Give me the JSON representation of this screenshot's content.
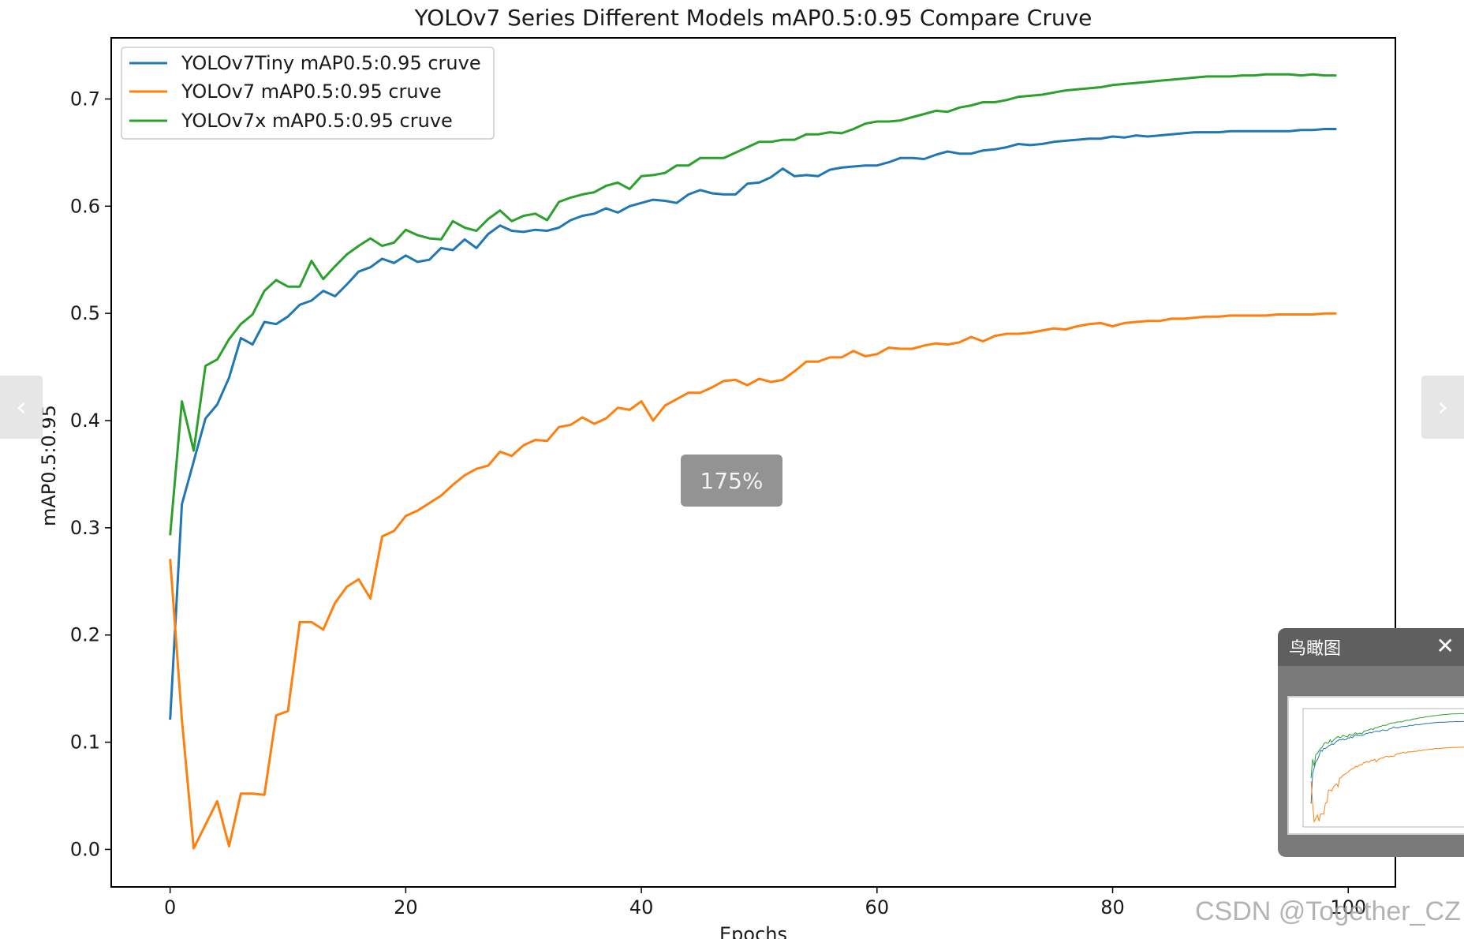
{
  "chart_data": {
    "type": "line",
    "title": "YOLOv7 Series Different Models mAP0.5:0.95 Compare Cruve",
    "xlabel": "Epochs",
    "ylabel": "mAP0.5:0.95",
    "xlim": [
      -5,
      104
    ],
    "ylim": [
      -0.035,
      0.757
    ],
    "x_ticks": [
      0,
      20,
      40,
      60,
      80,
      100
    ],
    "x_tick_labels": [
      "0",
      "20",
      "40",
      "60",
      "80",
      "100"
    ],
    "y_ticks": [
      0.0,
      0.1,
      0.2,
      0.3,
      0.4,
      0.5,
      0.6,
      0.7
    ],
    "y_tick_labels": [
      "0.0",
      "0.1",
      "0.2",
      "0.3",
      "0.4",
      "0.5",
      "0.6",
      "0.7"
    ],
    "grid": false,
    "legend_position": "top-left",
    "x": [
      0,
      1,
      2,
      3,
      4,
      5,
      6,
      7,
      8,
      9,
      10,
      11,
      12,
      13,
      14,
      15,
      16,
      17,
      18,
      19,
      20,
      21,
      22,
      23,
      24,
      25,
      26,
      27,
      28,
      29,
      30,
      31,
      32,
      33,
      34,
      35,
      36,
      37,
      38,
      39,
      40,
      41,
      42,
      43,
      44,
      45,
      46,
      47,
      48,
      49,
      50,
      51,
      52,
      53,
      54,
      55,
      56,
      57,
      58,
      59,
      60,
      61,
      62,
      63,
      64,
      65,
      66,
      67,
      68,
      69,
      70,
      71,
      72,
      73,
      74,
      75,
      76,
      77,
      78,
      79,
      80,
      81,
      82,
      83,
      84,
      85,
      86,
      87,
      88,
      89,
      90,
      91,
      92,
      93,
      94,
      95,
      96,
      97,
      98,
      99
    ],
    "series": [
      {
        "name": "YOLOv7Tiny mAP0.5:0.95 cruve",
        "color": "#1f77b4",
        "values": [
          0.121,
          0.322,
          0.362,
          0.402,
          0.415,
          0.44,
          0.477,
          0.471,
          0.492,
          0.49,
          0.497,
          0.508,
          0.512,
          0.521,
          0.516,
          0.527,
          0.539,
          0.543,
          0.551,
          0.547,
          0.554,
          0.548,
          0.55,
          0.561,
          0.559,
          0.569,
          0.561,
          0.574,
          0.582,
          0.577,
          0.576,
          0.578,
          0.577,
          0.58,
          0.587,
          0.591,
          0.593,
          0.598,
          0.594,
          0.6,
          0.603,
          0.606,
          0.605,
          0.603,
          0.611,
          0.615,
          0.612,
          0.611,
          0.611,
          0.621,
          0.622,
          0.627,
          0.635,
          0.628,
          0.629,
          0.628,
          0.634,
          0.636,
          0.637,
          0.638,
          0.638,
          0.641,
          0.645,
          0.645,
          0.644,
          0.648,
          0.651,
          0.649,
          0.649,
          0.652,
          0.653,
          0.655,
          0.658,
          0.657,
          0.658,
          0.66,
          0.661,
          0.662,
          0.663,
          0.663,
          0.665,
          0.664,
          0.666,
          0.665,
          0.666,
          0.667,
          0.668,
          0.669,
          0.669,
          0.669,
          0.67,
          0.67,
          0.67,
          0.67,
          0.67,
          0.67,
          0.671,
          0.671,
          0.672,
          0.672
        ]
      },
      {
        "name": "YOLOv7 mAP0.5:0.95 cruve",
        "color": "#ff7f0e",
        "values": [
          0.271,
          0.121,
          0.001,
          0.023,
          0.045,
          0.003,
          0.052,
          0.052,
          0.051,
          0.125,
          0.129,
          0.212,
          0.212,
          0.205,
          0.23,
          0.245,
          0.252,
          0.234,
          0.292,
          0.297,
          0.311,
          0.316,
          0.323,
          0.33,
          0.34,
          0.349,
          0.355,
          0.358,
          0.371,
          0.367,
          0.377,
          0.382,
          0.381,
          0.394,
          0.396,
          0.403,
          0.397,
          0.402,
          0.412,
          0.41,
          0.418,
          0.4,
          0.414,
          0.42,
          0.426,
          0.426,
          0.431,
          0.437,
          0.438,
          0.433,
          0.439,
          0.436,
          0.438,
          0.446,
          0.455,
          0.455,
          0.459,
          0.459,
          0.465,
          0.46,
          0.462,
          0.468,
          0.467,
          0.467,
          0.47,
          0.472,
          0.471,
          0.473,
          0.478,
          0.474,
          0.479,
          0.481,
          0.481,
          0.482,
          0.484,
          0.486,
          0.485,
          0.488,
          0.49,
          0.491,
          0.488,
          0.491,
          0.492,
          0.493,
          0.493,
          0.495,
          0.495,
          0.496,
          0.497,
          0.497,
          0.498,
          0.498,
          0.498,
          0.498,
          0.499,
          0.499,
          0.499,
          0.499,
          0.5,
          0.5
        ]
      },
      {
        "name": "YOLOv7x mAP0.5:0.95 cruve",
        "color": "#2ca02c",
        "values": [
          0.293,
          0.418,
          0.372,
          0.451,
          0.457,
          0.476,
          0.49,
          0.499,
          0.521,
          0.531,
          0.525,
          0.525,
          0.549,
          0.532,
          0.544,
          0.555,
          0.563,
          0.57,
          0.563,
          0.566,
          0.578,
          0.573,
          0.57,
          0.569,
          0.586,
          0.58,
          0.577,
          0.588,
          0.596,
          0.586,
          0.591,
          0.593,
          0.587,
          0.604,
          0.608,
          0.611,
          0.613,
          0.619,
          0.622,
          0.616,
          0.628,
          0.629,
          0.631,
          0.638,
          0.638,
          0.645,
          0.645,
          0.645,
          0.65,
          0.655,
          0.66,
          0.66,
          0.662,
          0.662,
          0.667,
          0.667,
          0.669,
          0.668,
          0.672,
          0.677,
          0.679,
          0.679,
          0.68,
          0.683,
          0.686,
          0.689,
          0.688,
          0.692,
          0.694,
          0.697,
          0.697,
          0.699,
          0.702,
          0.703,
          0.704,
          0.706,
          0.708,
          0.709,
          0.71,
          0.711,
          0.713,
          0.714,
          0.715,
          0.716,
          0.717,
          0.718,
          0.719,
          0.72,
          0.721,
          0.721,
          0.721,
          0.722,
          0.722,
          0.723,
          0.723,
          0.723,
          0.722,
          0.723,
          0.722,
          0.722
        ]
      }
    ]
  },
  "viewer": {
    "zoom_level": "175%",
    "prev_icon": "‹",
    "next_icon": "›",
    "overview_title": "鸟瞰图",
    "overview_close_icon": "✕",
    "watermark": "CSDN @Together_CZ"
  }
}
